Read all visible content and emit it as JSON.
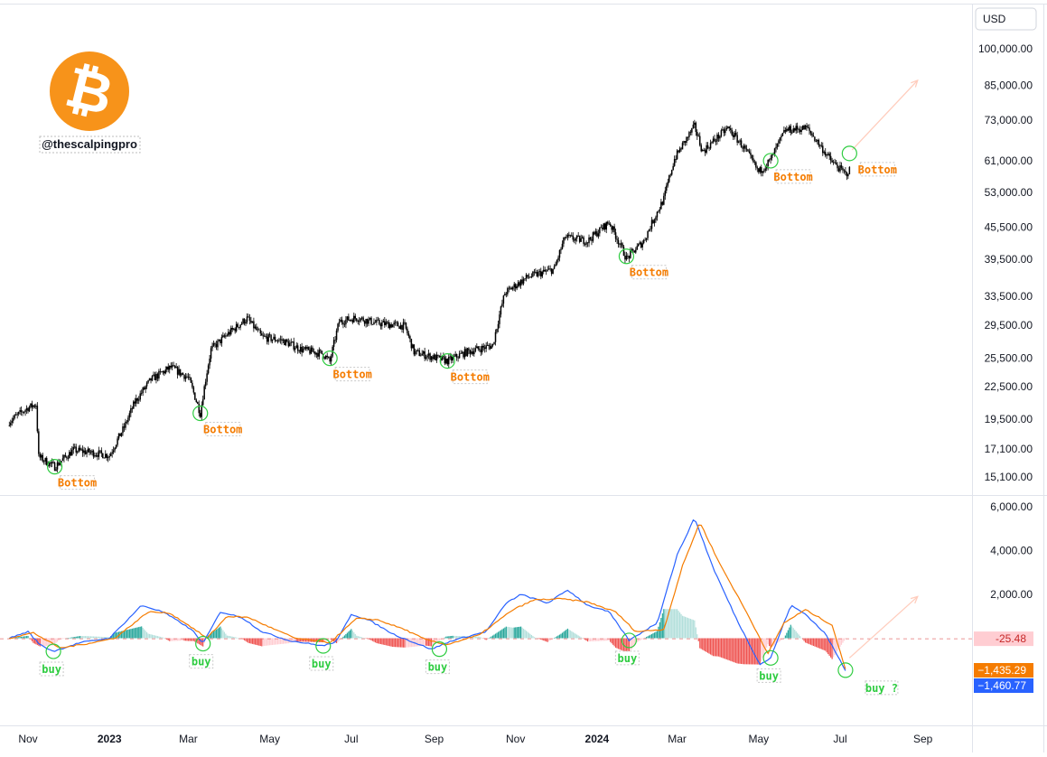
{
  "chart_data": [
    {
      "type": "candlestick",
      "currency_label": "USD",
      "scale": "log",
      "ylim": [
        14400,
        110000
      ],
      "grid": false,
      "y_ticks": [
        "100,000.00",
        "85,000.00",
        "73,000.00",
        "61,000.00",
        "53,000.00",
        "45,500.00",
        "39,500.00",
        "33,500.00",
        "29,500.00",
        "25,500.00",
        "22,500.00",
        "19,500.00",
        "17,100.00",
        "15,100.00"
      ],
      "y_tick_values": [
        100000,
        85000,
        73000,
        61000,
        53000,
        45500,
        39500,
        33500,
        29500,
        25500,
        22500,
        19500,
        17100,
        15100
      ],
      "x_ticks": [
        {
          "label": "Nov",
          "date": "2022-11-01"
        },
        {
          "label": "2023",
          "date": "2023-01-01"
        },
        {
          "label": "Mar",
          "date": "2023-03-01"
        },
        {
          "label": "May",
          "date": "2023-05-01"
        },
        {
          "label": "Jul",
          "date": "2023-07-01"
        },
        {
          "label": "Sep",
          "date": "2023-09-01"
        },
        {
          "label": "Nov",
          "date": "2023-11-01"
        },
        {
          "label": "2024",
          "date": "2024-01-01"
        },
        {
          "label": "Mar",
          "date": "2024-03-01"
        },
        {
          "label": "May",
          "date": "2024-05-01"
        },
        {
          "label": "Jul",
          "date": "2024-07-01"
        },
        {
          "label": "Sep",
          "date": "2024-09-01"
        }
      ],
      "x_range": [
        "2022-10-18",
        "2024-10-01"
      ],
      "price_path": [
        [
          "2022-10-18",
          19300
        ],
        [
          "2022-11-01",
          20500
        ],
        [
          "2022-11-07",
          20800
        ],
        [
          "2022-11-09",
          16500
        ],
        [
          "2022-11-21",
          15800
        ],
        [
          "2022-12-05",
          17000
        ],
        [
          "2022-12-20",
          16800
        ],
        [
          "2023-01-01",
          16600
        ],
        [
          "2023-01-12",
          18800
        ],
        [
          "2023-01-20",
          21000
        ],
        [
          "2023-02-01",
          23200
        ],
        [
          "2023-02-16",
          24500
        ],
        [
          "2023-03-01",
          23400
        ],
        [
          "2023-03-10",
          20000
        ],
        [
          "2023-03-18",
          26500
        ],
        [
          "2023-03-30",
          28300
        ],
        [
          "2023-04-14",
          30400
        ],
        [
          "2023-04-25",
          28000
        ],
        [
          "2023-05-10",
          27600
        ],
        [
          "2023-05-25",
          26500
        ],
        [
          "2023-06-10",
          26000
        ],
        [
          "2023-06-15",
          25100
        ],
        [
          "2023-06-22",
          30000
        ],
        [
          "2023-07-05",
          30500
        ],
        [
          "2023-07-20",
          29800
        ],
        [
          "2023-08-10",
          29400
        ],
        [
          "2023-08-17",
          26200
        ],
        [
          "2023-09-11",
          25200
        ],
        [
          "2023-09-25",
          26200
        ],
        [
          "2023-10-15",
          27000
        ],
        [
          "2023-10-24",
          34000
        ],
        [
          "2023-11-10",
          36500
        ],
        [
          "2023-11-30",
          37800
        ],
        [
          "2023-12-08",
          43500
        ],
        [
          "2023-12-25",
          42800
        ],
        [
          "2024-01-10",
          46500
        ],
        [
          "2024-01-23",
          39600
        ],
        [
          "2024-02-05",
          42800
        ],
        [
          "2024-02-20",
          51500
        ],
        [
          "2024-02-28",
          61500
        ],
        [
          "2024-03-14",
          71000
        ],
        [
          "2024-03-20",
          63500
        ],
        [
          "2024-04-08",
          70500
        ],
        [
          "2024-04-20",
          64500
        ],
        [
          "2024-05-01",
          58000
        ],
        [
          "2024-05-10",
          61200
        ],
        [
          "2024-05-21",
          69800
        ],
        [
          "2024-06-06",
          70500
        ],
        [
          "2024-06-24",
          61000
        ],
        [
          "2024-07-05",
          57500
        ],
        [
          "2024-07-08",
          58500
        ]
      ],
      "arrow": {
        "from": [
          "2024-07-10",
          64000
        ],
        "to": [
          "2024-08-28",
          87000
        ],
        "color": "#ffcdbd"
      },
      "markers": [
        {
          "label": "Bottom",
          "date": "2022-11-21",
          "value": 15800
        },
        {
          "label": "Bottom",
          "date": "2023-03-10",
          "value": 20000
        },
        {
          "label": "Bottom",
          "date": "2023-06-15",
          "value": 25500
        },
        {
          "label": "Bottom",
          "date": "2023-09-11",
          "value": 25200
        },
        {
          "label": "Bottom",
          "date": "2024-01-23",
          "value": 40000
        },
        {
          "label": "Bottom",
          "date": "2024-05-10",
          "value": 61000
        },
        {
          "label": "Bottom",
          "date": "2024-07-08",
          "value": 63000
        }
      ],
      "colors": {
        "candle": "#000000",
        "marker": "#2ecc40",
        "label": "#f57c00",
        "label_box": "#c8c8c8"
      }
    },
    {
      "type": "line",
      "indicator": "macd",
      "ylim": [
        -2600,
        6200
      ],
      "y_ticks": [
        "6,000.00",
        "4,000.00",
        "2,000.00"
      ],
      "y_tick_values": [
        6000,
        4000,
        2000
      ],
      "badges": [
        {
          "text": "-25.48",
          "value": -25.48,
          "bg": "#ffcdd2",
          "fg": "#c62828"
        },
        {
          "text": "−1,435.29",
          "value": -1435.29,
          "bg": "#f57c00",
          "fg": "#ffffff"
        },
        {
          "text": "−1,460.77",
          "value": -1460.77,
          "bg": "#2962ff",
          "fg": "#ffffff"
        }
      ],
      "series": [
        {
          "color": "#2962ff",
          "points": [
            [
              "2022-10-18",
              0
            ],
            [
              "2022-11-01",
              300
            ],
            [
              "2022-11-10",
              -300
            ],
            [
              "2022-11-20",
              -600
            ],
            [
              "2022-12-10",
              -200
            ],
            [
              "2023-01-01",
              0
            ],
            [
              "2023-01-25",
              1500
            ],
            [
              "2023-02-10",
              1200
            ],
            [
              "2023-02-25",
              650
            ],
            [
              "2023-03-05",
              300
            ],
            [
              "2023-03-12",
              -250
            ],
            [
              "2023-03-25",
              1200
            ],
            [
              "2023-04-10",
              950
            ],
            [
              "2023-04-25",
              300
            ],
            [
              "2023-05-15",
              -100
            ],
            [
              "2023-06-10",
              -350
            ],
            [
              "2023-06-20",
              -150
            ],
            [
              "2023-07-01",
              1100
            ],
            [
              "2023-07-15",
              800
            ],
            [
              "2023-08-01",
              200
            ],
            [
              "2023-08-15",
              -150
            ],
            [
              "2023-08-30",
              -500
            ],
            [
              "2023-09-15",
              -100
            ],
            [
              "2023-10-10",
              300
            ],
            [
              "2023-10-25",
              1600
            ],
            [
              "2023-11-05",
              2000
            ],
            [
              "2023-11-25",
              1600
            ],
            [
              "2023-12-10",
              2200
            ],
            [
              "2023-12-25",
              1500
            ],
            [
              "2024-01-10",
              1200
            ],
            [
              "2024-01-25",
              -100
            ],
            [
              "2024-02-15",
              700
            ],
            [
              "2024-03-01",
              3800
            ],
            [
              "2024-03-14",
              5500
            ],
            [
              "2024-03-28",
              3200
            ],
            [
              "2024-04-15",
              800
            ],
            [
              "2024-05-02",
              -1200
            ],
            [
              "2024-05-10",
              -900
            ],
            [
              "2024-05-25",
              1500
            ],
            [
              "2024-06-05",
              1100
            ],
            [
              "2024-06-20",
              200
            ],
            [
              "2024-07-05",
              -1460.77
            ]
          ]
        },
        {
          "color": "#f57c00",
          "points": [
            [
              "2022-10-18",
              0
            ],
            [
              "2022-11-05",
              250
            ],
            [
              "2022-11-15",
              -100
            ],
            [
              "2022-11-25",
              -450
            ],
            [
              "2022-12-15",
              -250
            ],
            [
              "2023-01-05",
              0
            ],
            [
              "2023-01-30",
              1200
            ],
            [
              "2023-02-15",
              1150
            ],
            [
              "2023-03-01",
              600
            ],
            [
              "2023-03-15",
              0
            ],
            [
              "2023-03-30",
              1000
            ],
            [
              "2023-04-15",
              950
            ],
            [
              "2023-05-01",
              500
            ],
            [
              "2023-05-20",
              0
            ],
            [
              "2023-06-15",
              -200
            ],
            [
              "2023-07-05",
              900
            ],
            [
              "2023-07-20",
              850
            ],
            [
              "2023-08-10",
              400
            ],
            [
              "2023-08-25",
              -50
            ],
            [
              "2023-09-10",
              -300
            ],
            [
              "2023-10-05",
              150
            ],
            [
              "2023-10-30",
              1300
            ],
            [
              "2023-11-15",
              1750
            ],
            [
              "2023-12-05",
              1800
            ],
            [
              "2023-12-25",
              1650
            ],
            [
              "2024-01-15",
              1200
            ],
            [
              "2024-01-30",
              300
            ],
            [
              "2024-02-20",
              400
            ],
            [
              "2024-03-05",
              3300
            ],
            [
              "2024-03-18",
              5300
            ],
            [
              "2024-04-01",
              3500
            ],
            [
              "2024-04-20",
              1400
            ],
            [
              "2024-05-08",
              -700
            ],
            [
              "2024-05-20",
              700
            ],
            [
              "2024-06-05",
              1300
            ],
            [
              "2024-06-25",
              600
            ],
            [
              "2024-07-05",
              -1435.29
            ]
          ]
        }
      ],
      "histogram_colors": {
        "pos_strong": "#26a69a",
        "pos_weak": "#b2dfdb",
        "neg_strong": "#ef5350",
        "neg_weak": "#ffcdd2"
      },
      "arrow": {
        "from": [
          "2024-07-08",
          -900
        ],
        "to": [
          "2024-08-28",
          1900
        ],
        "color": "#ffcdbd"
      },
      "markers": [
        {
          "label": "buy",
          "date": "2022-11-20",
          "value": -600
        },
        {
          "label": "buy",
          "date": "2023-03-12",
          "value": -250
        },
        {
          "label": "buy",
          "date": "2023-06-10",
          "value": -350
        },
        {
          "label": "buy",
          "date": "2023-09-05",
          "value": -500
        },
        {
          "label": "buy",
          "date": "2024-01-25",
          "value": -100
        },
        {
          "label": "buy",
          "date": "2024-05-10",
          "value": -900
        },
        {
          "label": "buy ?",
          "date": "2024-07-05",
          "value": -1460
        }
      ]
    }
  ],
  "watermark": {
    "handle": "@thescalpingpro",
    "logo_bg": "#f7931a",
    "logo_glyph": "₿"
  }
}
